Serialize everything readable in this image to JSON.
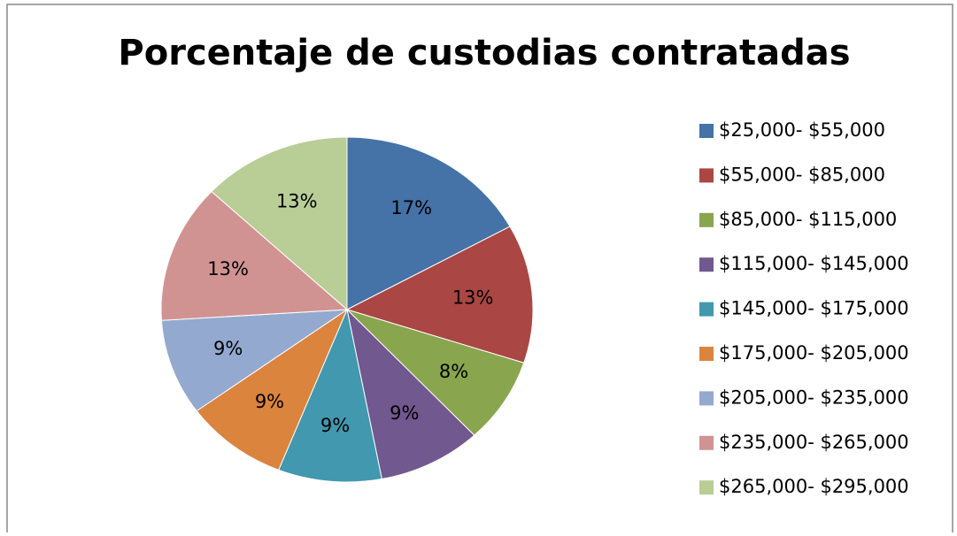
{
  "chart_data": {
    "type": "pie",
    "title": "Porcentaje de custodias contratadas",
    "categories": [
      "$25,000- $55,000",
      "$55,000- $85,000",
      "$85,000- $115,000",
      "$115,000- $145,000",
      "$145,000- $175,000",
      "$175,000- $205,000",
      "$205,000- $235,000",
      "$235,000- $265,000",
      "$265,000- $295,000"
    ],
    "values": [
      17,
      13,
      8,
      9,
      9,
      9,
      9,
      13,
      13
    ],
    "value_labels": [
      "17%",
      "13%",
      "8%",
      "9%",
      "9%",
      "9%",
      "9%",
      "13%",
      "13%"
    ],
    "colors": [
      "#4572a7",
      "#aa4643",
      "#89a54e",
      "#71588f",
      "#4198af",
      "#db843d",
      "#93a9cf",
      "#d19392",
      "#b9cd96"
    ],
    "legend": "right"
  }
}
